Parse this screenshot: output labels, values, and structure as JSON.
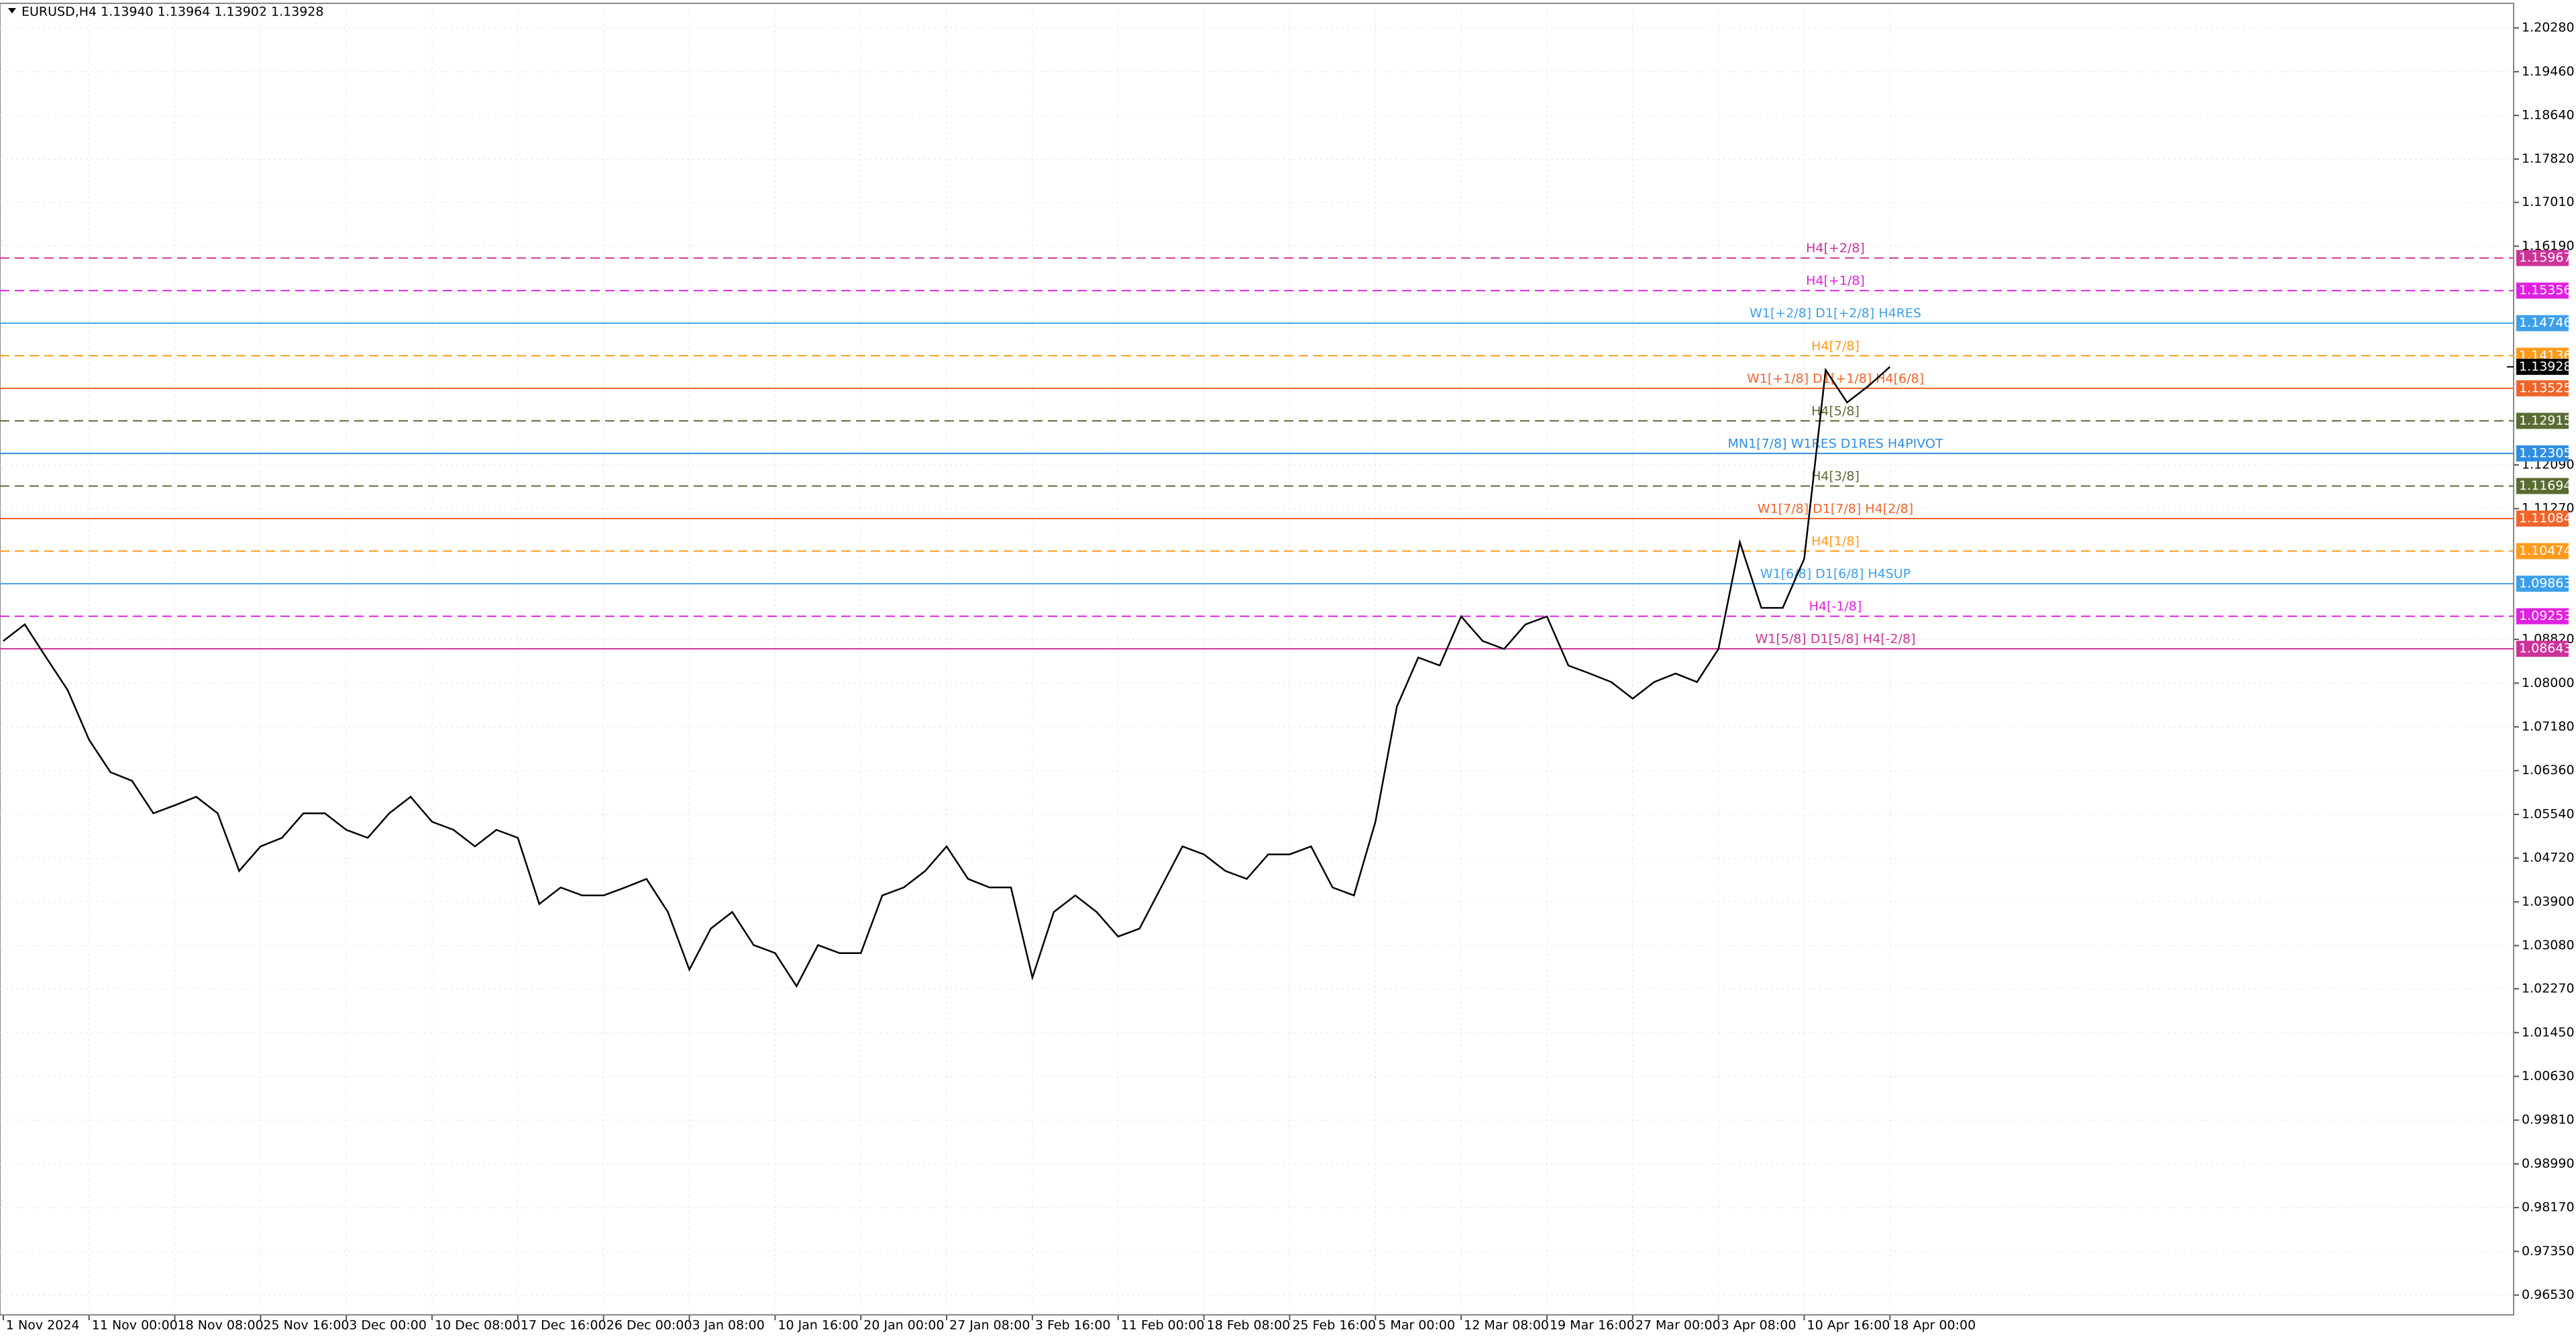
{
  "chart_data": {
    "type": "line",
    "title": "EURUSD,H4  1.13940 1.13964 1.13902 1.13928",
    "categories": [
      "1 Nov 2024",
      null,
      null,
      null,
      "11 Nov 00:00",
      null,
      null,
      null,
      "18 Nov 08:00",
      null,
      null,
      null,
      "25 Nov 16:00",
      null,
      null,
      null,
      "3 Dec 00:00",
      null,
      null,
      null,
      "10 Dec 08:00",
      null,
      null,
      null,
      "17 Dec 16:00",
      null,
      null,
      null,
      "26 Dec 00:00",
      null,
      null,
      null,
      "3 Jan 08:00",
      null,
      null,
      null,
      "10 Jan 16:00",
      null,
      null,
      null,
      "20 Jan 00:00",
      null,
      null,
      null,
      "27 Jan 08:00",
      null,
      null,
      null,
      "3 Feb 16:00",
      null,
      null,
      null,
      "11 Feb 00:00",
      null,
      null,
      null,
      "18 Feb 08:00",
      null,
      null,
      null,
      "25 Feb 16:00",
      null,
      null,
      null,
      "5 Mar 00:00",
      null,
      null,
      null,
      "12 Mar 08:00",
      null,
      null,
      null,
      "19 Mar 16:00",
      null,
      null,
      null,
      "27 Mar 00:00",
      null,
      null,
      null,
      "3 Apr 08:00",
      null,
      null,
      null,
      "10 Apr 16:00",
      null,
      null,
      null,
      "18 Apr 00:00"
    ],
    "values": [
      1.0879,
      1.091,
      1.0848,
      1.0787,
      1.0694,
      1.0633,
      1.0617,
      1.0556,
      1.0571,
      1.0587,
      1.0556,
      1.0448,
      1.0494,
      1.051,
      1.0556,
      1.0556,
      1.0525,
      1.051,
      1.0556,
      1.0587,
      1.054,
      1.0525,
      1.0494,
      1.0525,
      1.051,
      1.0386,
      1.0417,
      1.0402,
      1.0402,
      1.0417,
      1.0433,
      1.0371,
      1.0263,
      1.034,
      1.0371,
      1.0309,
      1.0294,
      1.0232,
      1.0309,
      1.0294,
      1.0294,
      1.0402,
      1.0417,
      1.0448,
      1.0494,
      1.0433,
      1.0417,
      1.0417,
      1.0248,
      1.0371,
      1.0402,
      1.0371,
      1.0325,
      1.034,
      1.0417,
      1.0494,
      1.0479,
      1.0448,
      1.0433,
      1.0479,
      1.0479,
      1.0494,
      1.0417,
      1.0402,
      1.054,
      1.0756,
      1.0848,
      1.0833,
      1.0925,
      1.0879,
      1.0864,
      1.091,
      1.0925,
      1.0833,
      1.0818,
      1.0802,
      1.0771,
      1.0802,
      1.0818,
      1.0802,
      1.0864,
      1.1064,
      1.0941,
      1.0941,
      1.1033,
      1.1387,
      1.1326,
      1.1357,
      1.13928
    ],
    "color": "#000000",
    "ylim": [
      0.9616,
      1.2074
    ],
    "yticks": [
      {
        "value": 1.2028,
        "label": "1.20280"
      },
      {
        "value": 1.1946,
        "label": "1.19460"
      },
      {
        "value": 1.1864,
        "label": "1.18640"
      },
      {
        "value": 1.1782,
        "label": "1.17820"
      },
      {
        "value": 1.1701,
        "label": "1.17010"
      },
      {
        "value": 1.1619,
        "label": "1.16190"
      },
      {
        "value": 1.1209,
        "label": "1.12090"
      },
      {
        "value": 1.1127,
        "label": "1.11270"
      },
      {
        "value": 1.0882,
        "label": "1.08820"
      },
      {
        "value": 1.08,
        "label": "1.08000"
      },
      {
        "value": 1.0718,
        "label": "1.07180"
      },
      {
        "value": 1.0636,
        "label": "1.06360"
      },
      {
        "value": 1.0554,
        "label": "1.05540"
      },
      {
        "value": 1.0472,
        "label": "1.04720"
      },
      {
        "value": 1.039,
        "label": "1.03900"
      },
      {
        "value": 1.0308,
        "label": "1.03080"
      },
      {
        "value": 1.0227,
        "label": "1.02270"
      },
      {
        "value": 1.0145,
        "label": "1.01450"
      },
      {
        "value": 1.0063,
        "label": "1.00630"
      },
      {
        "value": 0.9981,
        "label": "0.99810"
      },
      {
        "value": 0.9899,
        "label": "0.98990"
      },
      {
        "value": 0.9817,
        "label": "0.98170"
      },
      {
        "value": 0.9735,
        "label": "0.97350"
      },
      {
        "value": 0.9653,
        "label": "0.96530"
      }
    ],
    "grid": true,
    "last_price": 1.13928,
    "levels": [
      {
        "value": 1.15967,
        "label": "H4[+2/8]",
        "color": "#cc3399",
        "style": "dashed"
      },
      {
        "value": 1.15356,
        "label": "H4[+1/8]",
        "color": "#e020e0",
        "style": "dashed"
      },
      {
        "value": 1.14746,
        "label": "W1[+2/8] D1[+2/8] H4RES",
        "color": "#3ea0e8",
        "style": "solid"
      },
      {
        "value": 1.14136,
        "label": "H4[7/8]",
        "color": "#ff9a1a",
        "style": "dashed"
      },
      {
        "value": 1.13525,
        "label": "W1[+1/8] D1[+1/8] H4[6/8]",
        "color": "#f0642a",
        "style": "solid"
      },
      {
        "value": 1.12915,
        "label": "H4[5/8]",
        "color": "#5a6b32",
        "style": "dashed"
      },
      {
        "value": 1.12305,
        "label": "MN1[7/8] W1RES D1RES H4PIVOT",
        "color": "#2f8ee0",
        "style": "solid"
      },
      {
        "value": 1.11694,
        "label": "H4[3/8]",
        "color": "#5a6b32",
        "style": "dashed"
      },
      {
        "value": 1.11084,
        "label": "W1[7/8] D1[7/8] H4[2/8]",
        "color": "#f0642a",
        "style": "solid"
      },
      {
        "value": 1.10474,
        "label": "H4[1/8]",
        "color": "#ff9a1a",
        "style": "dashed"
      },
      {
        "value": 1.09863,
        "label": "W1[6/8] D1[6/8] H4SUP",
        "color": "#3ea0e8",
        "style": "solid"
      },
      {
        "value": 1.09253,
        "label": "H4[-1/8]",
        "color": "#e020e0",
        "style": "dashed"
      },
      {
        "value": 1.08643,
        "label": "W1[5/8] D1[5/8] H4[-2/8]",
        "color": "#cc3399",
        "style": "solid"
      }
    ]
  }
}
